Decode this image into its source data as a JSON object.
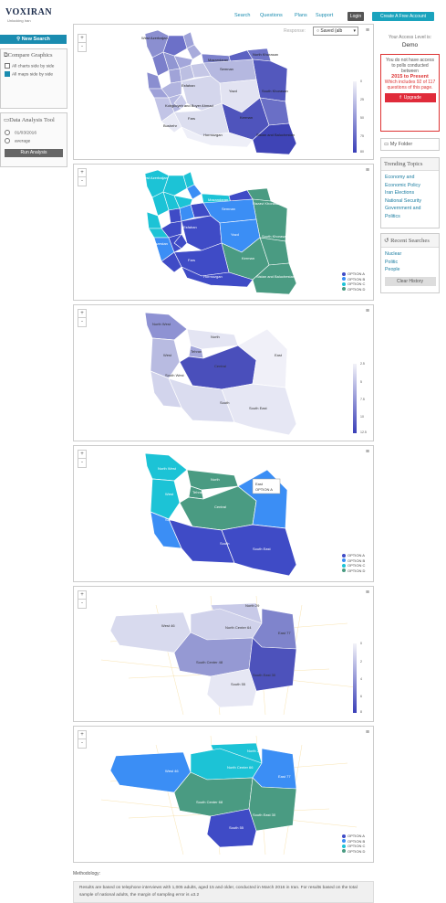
{
  "brand": {
    "logo": "VOXIRAN",
    "tagline": "Unlocking Iran"
  },
  "nav": {
    "items": [
      "Search",
      "Questions",
      "Plans",
      "Support"
    ],
    "login": "Login",
    "create": "Create A Free Account"
  },
  "sidebar": {
    "new_search": "New Search",
    "compare": {
      "title": "Compare Graphics",
      "opt1": "All charts side by side",
      "opt2": "All maps side by side"
    },
    "analysis": {
      "title": "Data Analysis Tool",
      "opt1": "01/03/2016",
      "opt2": "average",
      "run": "Run Analysis"
    }
  },
  "right": {
    "access_label": "Your Access Level is:",
    "access_level": "Demo",
    "alert": {
      "line1": "You do not have access to polls conducted between",
      "range": "2015 to Present",
      "line2": "Which includes 92 of 117 questions of this page.",
      "upgrade": "Upgrade"
    },
    "folder": "My Folder",
    "trending": {
      "title": "Trending Topics",
      "items": [
        "Economy and Economic Policy",
        "Iran Elections",
        "National Security",
        "Government and Politics"
      ]
    },
    "recent": {
      "title": "Recent Searches",
      "items": [
        "Nuclear",
        "Politic",
        "People"
      ],
      "clear": "Clear History"
    }
  },
  "response": {
    "label": "Response:",
    "value": "Saved (alb"
  },
  "maps": {
    "provinces": {
      "west_az": "West Azerbaijan",
      "east_az": "East Azerbaijan",
      "ardabil": "Ardabil",
      "gilan": "Gilan",
      "mazandaran": "Mazandaran",
      "golestan": "Golestan",
      "north_khorasan": "North Khorasan",
      "razavi": "Razavi Khorasan",
      "south_khorasan": "South Khorasan",
      "semnan": "Semnan",
      "tehran": "Tehran",
      "qazvin": "Qazvin",
      "zanjan": "Zanjan",
      "kurdistan": "Kurdistan",
      "kermanshah": "Kermanshah",
      "hamadan": "Hamadan",
      "markazi": "Markazi",
      "qom": "Qom",
      "isfahan": "Esfahan",
      "yazd": "Yazd",
      "kerman": "Kerman",
      "sistan": "Sistan and Baluchestan",
      "hormozgan": "Hormozgan",
      "fars": "Fars",
      "bushehr": "Bushehr",
      "khuzestan": "Khuzestan",
      "lorestan": "Lorestan",
      "ilam": "Ilam",
      "kohgiluyeh": "Kohgiluyeh and Boyer Ahmad",
      "chahar": "Chahar Mahaal and Bakhtiari"
    },
    "regions": {
      "nw": "North West",
      "north": "North",
      "west": "West",
      "tehran": "Tehran",
      "central": "Central",
      "east": "East",
      "southwest": "South West",
      "south": "South",
      "southeast": "South East"
    },
    "tehran_zones": {
      "north29": "North 29",
      "nc64": "North Center 64",
      "east": "East 77",
      "west": "West 46",
      "sc": "South Center 48",
      "se": "South East 30",
      "south": "South 55",
      "north22": "North 22",
      "nc66": "North Center 66",
      "se30": "South East 30",
      "sc68": "South Center 68",
      "south55": "South 55"
    },
    "options": [
      "OPTION A",
      "OPTION B",
      "OPTION C",
      "OPTION D"
    ],
    "option_colors": [
      "#3f4bc6",
      "#3b8ef5",
      "#1cc3d6",
      "#4a9b82"
    ],
    "scale1": [
      "0",
      "25",
      "50",
      "75",
      "80"
    ],
    "scale2": [
      "2.5",
      "5",
      "7.5",
      "10",
      "12.5"
    ],
    "scale3": [
      "0",
      "2",
      "4",
      "6",
      "8"
    ],
    "tooltip": {
      "region": "East",
      "option": "OPTION A"
    }
  },
  "methodology": {
    "label": "Methodology:",
    "text": "Results are based on telephone interviews with 1,005 adults, aged 15 and older, conducted in March 2016 in Iran. For results based on the total sample of national adults, the margin of sampling error is ±3.2"
  },
  "zoom": {
    "plus": "+",
    "minus": "-"
  },
  "menu_icon": "≡",
  "colors": {
    "accent": "#1a8cb0",
    "alert": "#e02b3a",
    "dark_blue": "#3a3fb8"
  }
}
